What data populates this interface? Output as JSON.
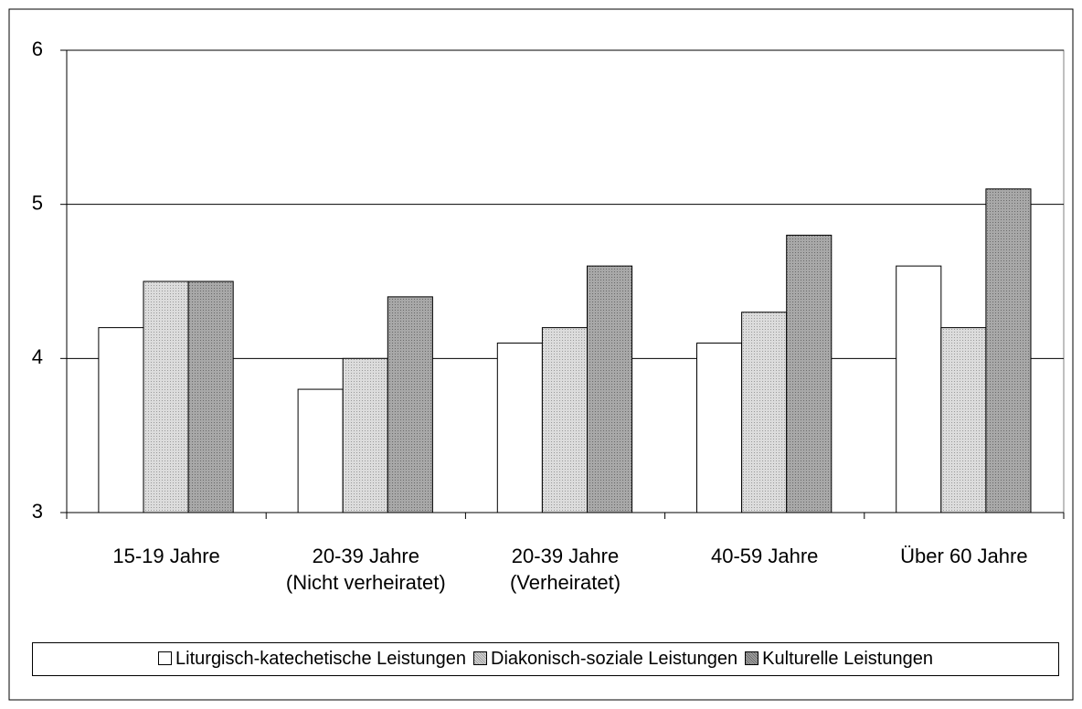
{
  "chart_data": {
    "type": "bar",
    "categories": [
      "15-19 Jahre",
      "20-39 Jahre (Nicht verheiratet)",
      "20-39 Jahre (Verheiratet)",
      "40-59 Jahre",
      "Über 60 Jahre"
    ],
    "series": [
      {
        "name": "Liturgisch-katechetische Leistungen",
        "color": "#ffffff",
        "values": [
          4.2,
          3.8,
          4.1,
          4.1,
          4.6
        ]
      },
      {
        "name": "Diakonisch-soziale Leistungen",
        "color": "#dcdcdc",
        "values": [
          4.5,
          4.0,
          4.2,
          4.3,
          4.2
        ]
      },
      {
        "name": "Kulturelle Leistungen",
        "color": "#a8a8a8",
        "values": [
          4.5,
          4.4,
          4.6,
          4.8,
          5.1
        ]
      }
    ],
    "ylim": [
      3,
      6
    ],
    "yticks": [
      3,
      4,
      5,
      6
    ],
    "grid": true,
    "legend": "bottom"
  }
}
